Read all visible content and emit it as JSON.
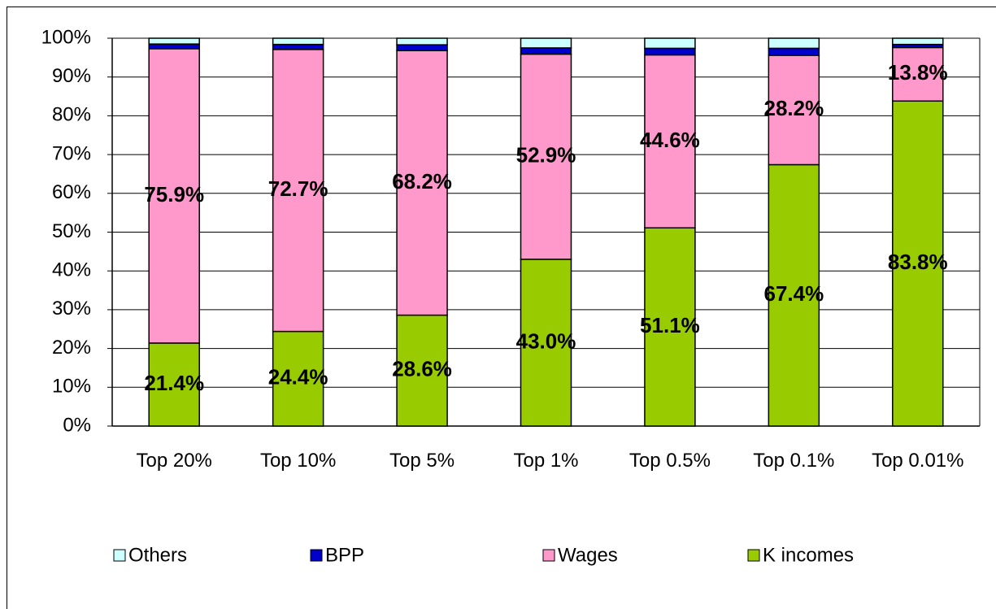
{
  "chart_data": {
    "type": "stacked_bar",
    "categories": [
      "Top 20%",
      "Top 10%",
      "Top 5%",
      "Top 1%",
      "Top 0.5%",
      "Top 0.1%",
      "Top 0.01%"
    ],
    "series": [
      {
        "name": "K incomes",
        "color": "#99cc00",
        "values": [
          21.4,
          24.4,
          28.6,
          43.0,
          51.1,
          67.4,
          83.8
        ],
        "value_labels": [
          "21.4%",
          "24.4%",
          "28.6%",
          "43.0%",
          "51.1%",
          "67.4%",
          "83.8%"
        ]
      },
      {
        "name": "Wages",
        "color": "#ff99cc",
        "values": [
          75.9,
          72.7,
          68.2,
          52.9,
          44.6,
          28.2,
          13.8
        ],
        "value_labels": [
          "75.9%",
          "72.7%",
          "68.2%",
          "52.9%",
          "44.6%",
          "28.2%",
          "13.8%"
        ]
      },
      {
        "name": "BPP",
        "color": "#0000cc",
        "values": [
          1.2,
          1.3,
          1.5,
          1.6,
          1.7,
          1.8,
          0.8
        ]
      },
      {
        "name": "Others",
        "color": "#ccffff",
        "values": [
          1.5,
          1.6,
          1.7,
          2.5,
          2.6,
          2.6,
          1.6
        ]
      }
    ],
    "ylim": [
      0,
      100
    ],
    "yticks": [
      {
        "value": 0,
        "label": "0%"
      },
      {
        "value": 10,
        "label": "10%"
      },
      {
        "value": 20,
        "label": "20%"
      },
      {
        "value": 30,
        "label": "30%"
      },
      {
        "value": 40,
        "label": "40%"
      },
      {
        "value": 50,
        "label": "50%"
      },
      {
        "value": 60,
        "label": "60%"
      },
      {
        "value": 70,
        "label": "70%"
      },
      {
        "value": 80,
        "label": "80%"
      },
      {
        "value": 90,
        "label": "90%"
      },
      {
        "value": 100,
        "label": "100%"
      }
    ],
    "grid": true,
    "legend": "bottom"
  }
}
